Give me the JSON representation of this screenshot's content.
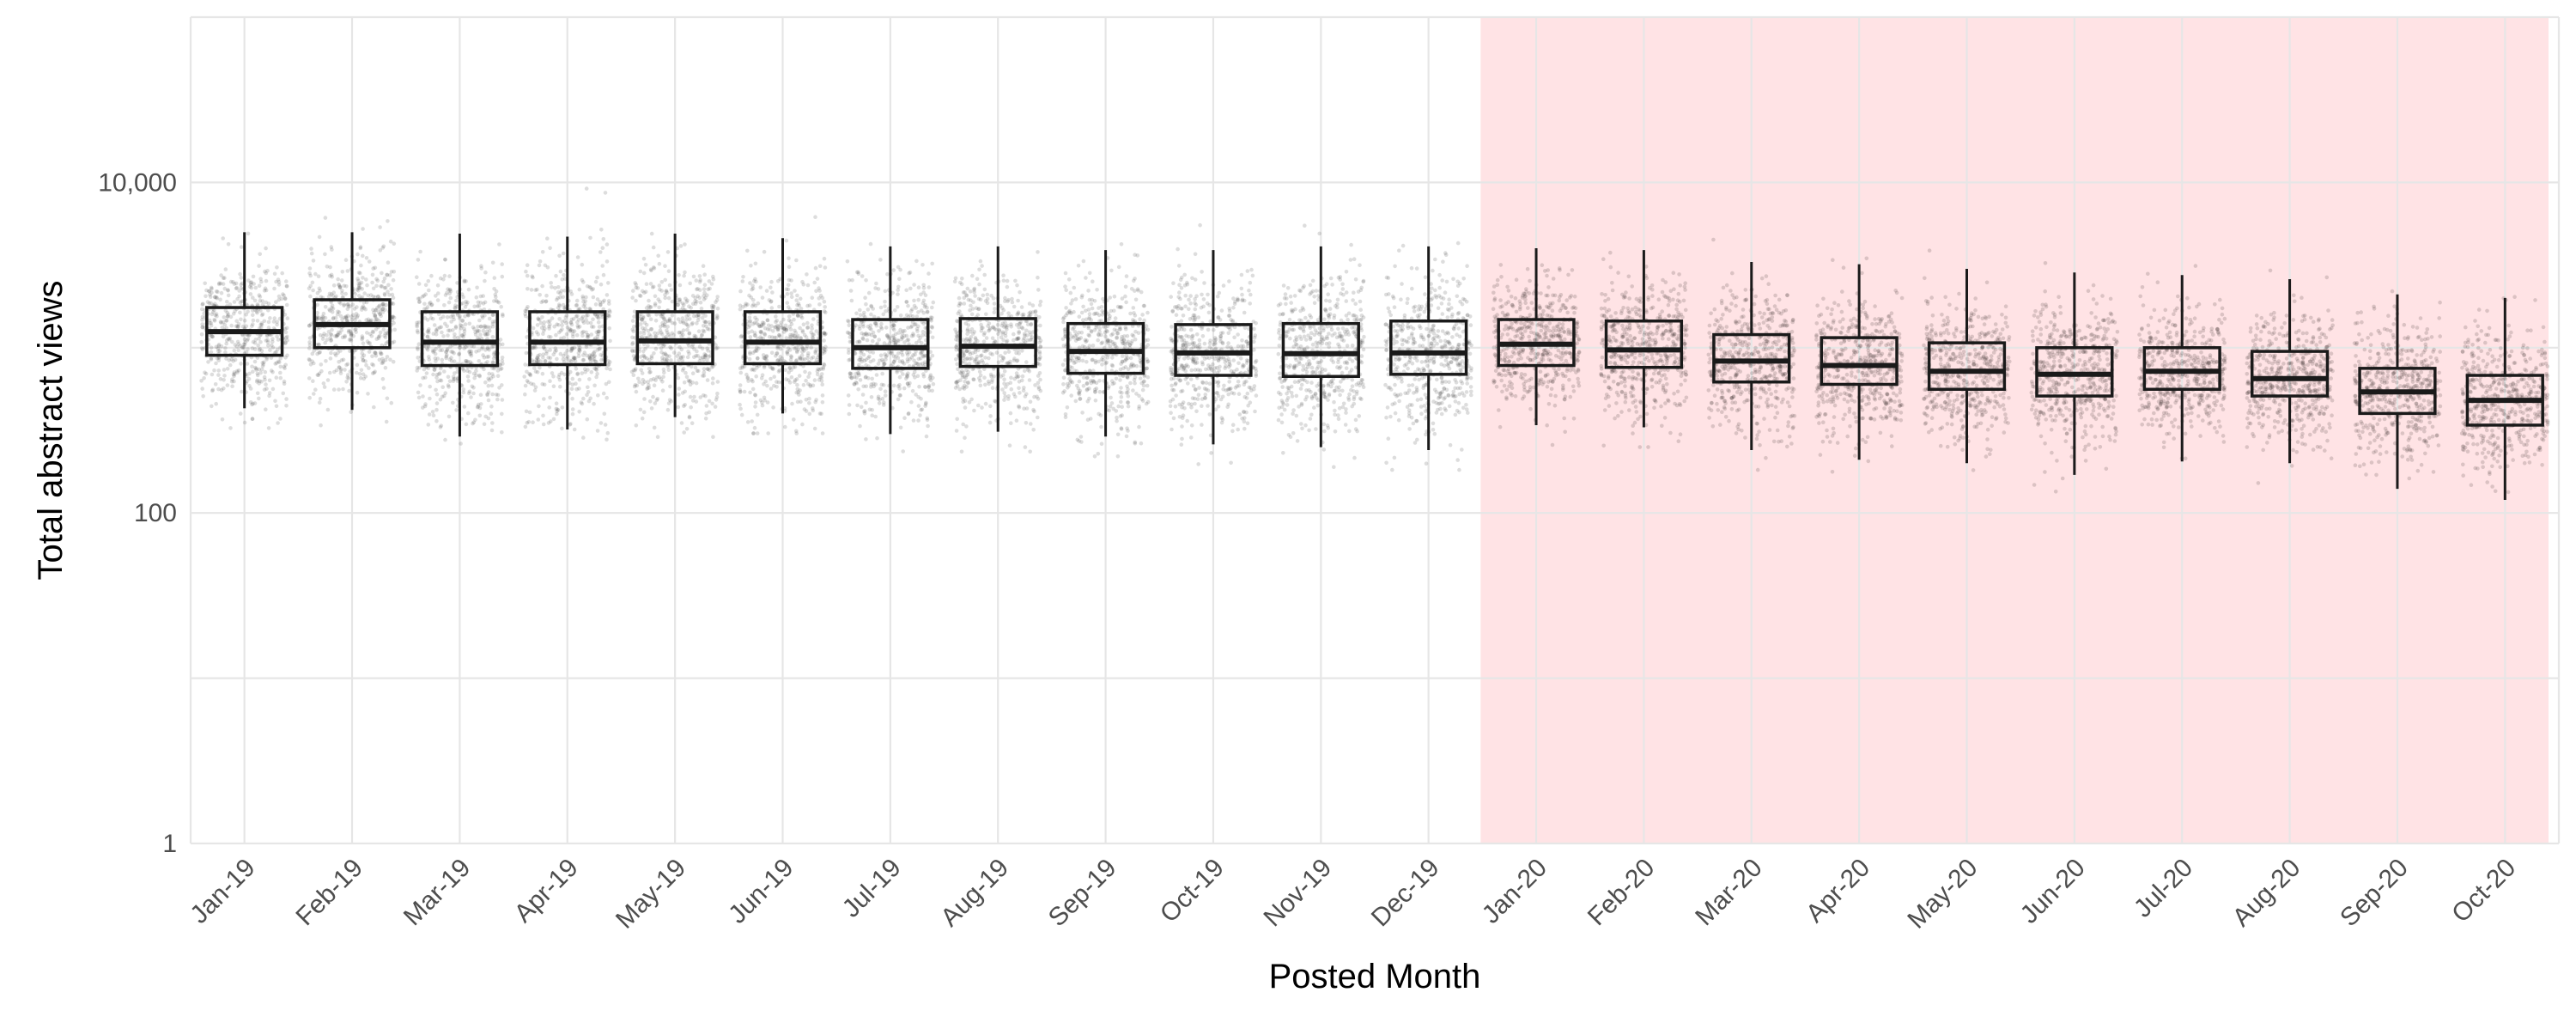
{
  "chart_data": {
    "type": "boxplot",
    "xlabel": "Posted Month",
    "ylabel": "Total abstract views",
    "y_scale": "log10",
    "ylim": [
      1,
      100000
    ],
    "y_ticks": [
      1,
      100,
      10000
    ],
    "y_tick_labels": [
      "1",
      "100",
      "10,000"
    ],
    "grid": true,
    "points": "jittered individual observations (grey, semi-transparent)",
    "highlight": {
      "from": "Jan-20",
      "to": "Oct-20",
      "color": "#ffe3e5"
    },
    "categories": [
      "Jan-19",
      "Feb-19",
      "Mar-19",
      "Apr-19",
      "May-19",
      "Jun-19",
      "Jul-19",
      "Aug-19",
      "Sep-19",
      "Oct-19",
      "Nov-19",
      "Dec-19",
      "Jan-20",
      "Feb-20",
      "Mar-20",
      "Apr-20",
      "May-20",
      "Jun-20",
      "Jul-20",
      "Aug-20",
      "Sep-20",
      "Oct-20"
    ],
    "boxes": [
      {
        "q1": 900,
        "median": 1250,
        "q3": 1750,
        "whisker_low": 430,
        "whisker_high": 5000
      },
      {
        "q1": 1000,
        "median": 1380,
        "q3": 1950,
        "whisker_low": 420,
        "whisker_high": 5000
      },
      {
        "q1": 780,
        "median": 1080,
        "q3": 1650,
        "whisker_low": 290,
        "whisker_high": 4900
      },
      {
        "q1": 790,
        "median": 1080,
        "q3": 1650,
        "whisker_low": 320,
        "whisker_high": 4700
      },
      {
        "q1": 800,
        "median": 1100,
        "q3": 1650,
        "whisker_low": 380,
        "whisker_high": 4900
      },
      {
        "q1": 800,
        "median": 1080,
        "q3": 1650,
        "whisker_low": 400,
        "whisker_high": 4600
      },
      {
        "q1": 750,
        "median": 1000,
        "q3": 1480,
        "whisker_low": 300,
        "whisker_high": 4100
      },
      {
        "q1": 770,
        "median": 1020,
        "q3": 1500,
        "whisker_low": 310,
        "whisker_high": 4100
      },
      {
        "q1": 700,
        "median": 950,
        "q3": 1400,
        "whisker_low": 290,
        "whisker_high": 3900
      },
      {
        "q1": 680,
        "median": 930,
        "q3": 1380,
        "whisker_low": 260,
        "whisker_high": 3900
      },
      {
        "q1": 670,
        "median": 920,
        "q3": 1400,
        "whisker_low": 250,
        "whisker_high": 4100
      },
      {
        "q1": 690,
        "median": 930,
        "q3": 1450,
        "whisker_low": 240,
        "whisker_high": 4100
      },
      {
        "q1": 780,
        "median": 1050,
        "q3": 1480,
        "whisker_low": 340,
        "whisker_high": 4000
      },
      {
        "q1": 760,
        "median": 970,
        "q3": 1450,
        "whisker_low": 330,
        "whisker_high": 3900
      },
      {
        "q1": 620,
        "median": 830,
        "q3": 1200,
        "whisker_low": 240,
        "whisker_high": 3300
      },
      {
        "q1": 600,
        "median": 780,
        "q3": 1150,
        "whisker_low": 210,
        "whisker_high": 3200
      },
      {
        "q1": 560,
        "median": 720,
        "q3": 1070,
        "whisker_low": 200,
        "whisker_high": 3000
      },
      {
        "q1": 510,
        "median": 690,
        "q3": 1000,
        "whisker_low": 170,
        "whisker_high": 2850
      },
      {
        "q1": 560,
        "median": 720,
        "q3": 1000,
        "whisker_low": 205,
        "whisker_high": 2750
      },
      {
        "q1": 510,
        "median": 650,
        "q3": 950,
        "whisker_low": 200,
        "whisker_high": 2600
      },
      {
        "q1": 400,
        "median": 540,
        "q3": 750,
        "whisker_low": 140,
        "whisker_high": 2100
      },
      {
        "q1": 340,
        "median": 480,
        "q3": 680,
        "whisker_low": 120,
        "whisker_high": 2000
      }
    ]
  }
}
